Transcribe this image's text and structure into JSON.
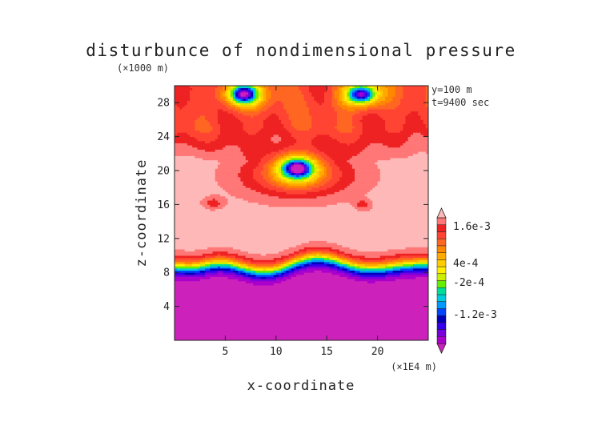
{
  "chart_data": {
    "type": "heatmap",
    "title": "disturbunce of nondimensional pressure",
    "xlabel": "x-coordinate",
    "ylabel": "z-coordinate",
    "x_unit": "(×1E4 m)",
    "y_unit": "(×1000 m)",
    "annotations": [
      "y=100 m",
      "t=9400 sec"
    ],
    "xlim": [
      0,
      25
    ],
    "ylim": [
      0,
      30
    ],
    "x_ticks": [
      5,
      10,
      15,
      20
    ],
    "y_ticks": [
      4,
      8,
      12,
      16,
      20,
      24,
      28
    ],
    "colorbar": {
      "labels": [
        "1.6e-3",
        "4e-4",
        "-2e-4",
        "-1.2e-3"
      ],
      "levels": [
        -0.002,
        -0.0018,
        -0.0016,
        -0.0014,
        -0.0012,
        -0.001,
        -0.0008,
        -0.0006,
        -0.0004,
        -0.0002,
        0,
        0.0002,
        0.0004,
        0.0006,
        0.0008,
        0.001,
        0.0012,
        0.0014,
        0.0016,
        0.0018
      ],
      "colors": [
        "#cc22bb",
        "#aa00cc",
        "#7700dd",
        "#3300ee",
        "#0000bb",
        "#0044ff",
        "#0099ff",
        "#00ccdd",
        "#00dd99",
        "#66ee00",
        "#ccee00",
        "#ffee00",
        "#ffcc00",
        "#ffaa00",
        "#ff8800",
        "#ff6622",
        "#ff4433",
        "#ee2222",
        "#ff7777",
        "#ffb8b8"
      ]
    },
    "structure": {
      "upper_x_band": {
        "z_range": [
          22,
          30
        ],
        "approx_value": 0.0012
      },
      "background_value_above_10km": 0.0019,
      "strong_gradient_z": [
        7,
        10
      ],
      "lower_layer_value": -0.002,
      "low_centers": [
        {
          "x": 12.1,
          "z": 20.3,
          "value": -0.0014
        },
        {
          "x": 6.8,
          "z": 29.0,
          "value": -0.001
        },
        {
          "x": 18.4,
          "z": 29.0,
          "value": -0.001
        }
      ]
    }
  }
}
